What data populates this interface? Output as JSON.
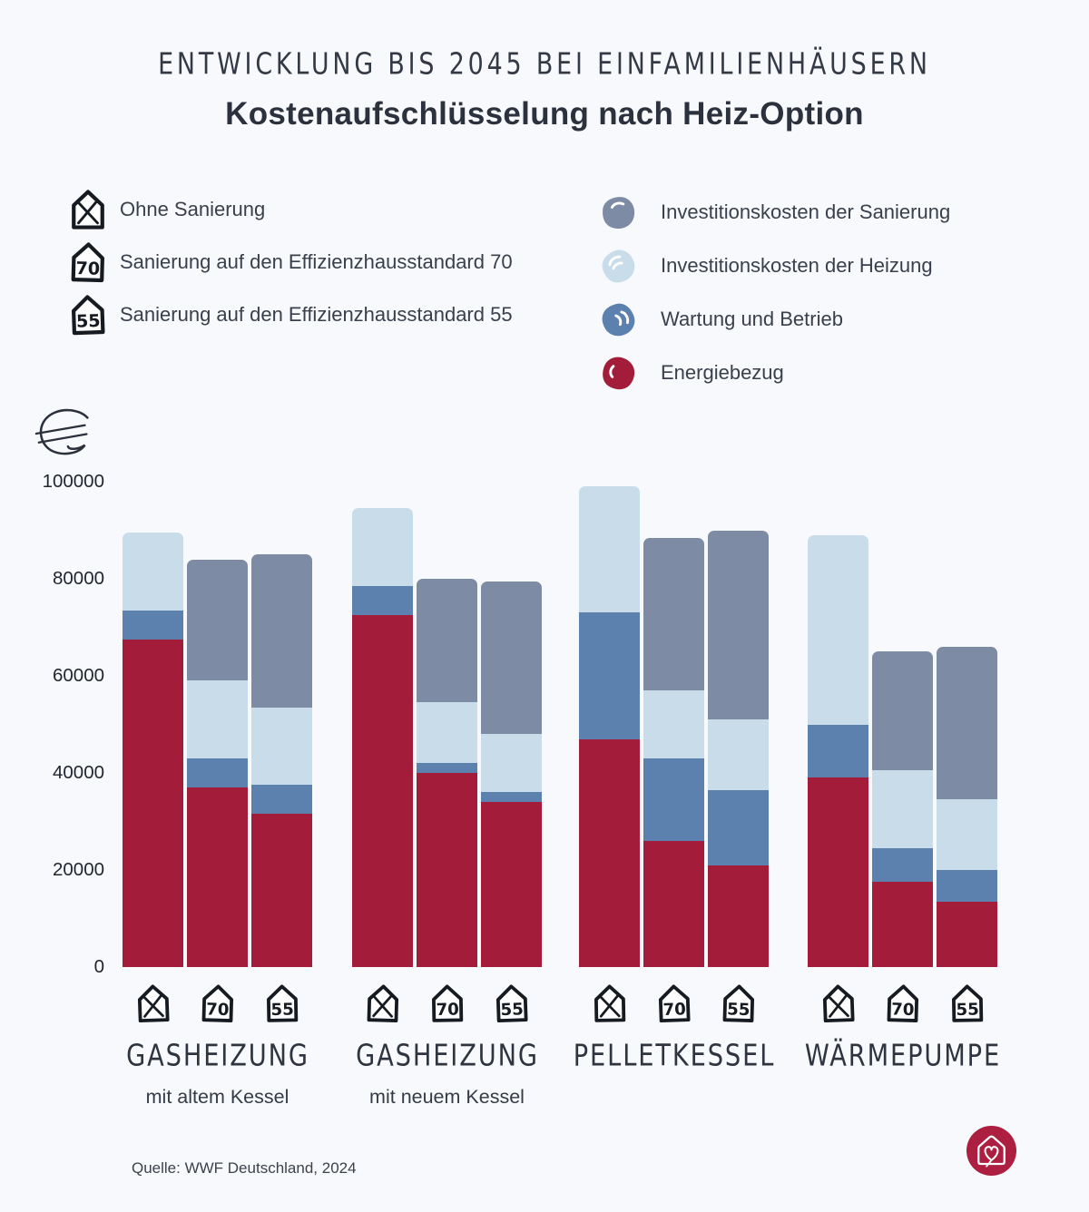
{
  "header": {
    "kicker": "ENTWICKLUNG BIS 2045 BEI EINFAMILIENHÄUSERN",
    "title": "Kostenaufschlüsselung nach Heiz-Option"
  },
  "renovation_legend": {
    "items": [
      {
        "icon": "house-x-icon",
        "badge": "",
        "label": "Ohne Sanierung"
      },
      {
        "icon": "house-70-icon",
        "badge": "70",
        "label": "Sanierung auf den Effizienzhausstandard 70"
      },
      {
        "icon": "house-55-icon",
        "badge": "55",
        "label": "Sanierung auf den Effizienzhausstandard 55"
      }
    ]
  },
  "cost_legend": {
    "items": [
      {
        "key": "sanierung",
        "label": "Investitionskosten der Sanierung",
        "color": "#7d8ba4"
      },
      {
        "key": "heizung",
        "label": "Investitionskosten der Heizung",
        "color": "#c9dcea"
      },
      {
        "key": "wartung",
        "label": "Wartung und Betrieb",
        "color": "#5c81af"
      },
      {
        "key": "energie",
        "label": "Energiebezug",
        "color": "#a31d3b"
      }
    ]
  },
  "axis": {
    "unit": "€",
    "ticks": [
      100000,
      80000,
      60000,
      40000,
      20000,
      0
    ],
    "max": 100000
  },
  "chart_data": {
    "type": "bar",
    "stacked": true,
    "title": "Kostenaufschlüsselung nach Heiz-Option",
    "ylabel": "€",
    "ylim": [
      0,
      100000
    ],
    "grid": false,
    "legend_position": "top",
    "segment_order": [
      "energie",
      "wartung",
      "heizung",
      "sanierung"
    ],
    "variants": [
      "ohne",
      "70",
      "55"
    ],
    "groups": [
      {
        "label": "GASHEIZUNG",
        "sublabel": "mit altem Kessel",
        "bars": [
          {
            "variant": "ohne",
            "values": {
              "energie": 67500,
              "wartung": 6000,
              "heizung": 16000,
              "sanierung": 0
            },
            "total": 89500
          },
          {
            "variant": "70",
            "values": {
              "energie": 37000,
              "wartung": 6000,
              "heizung": 16000,
              "sanierung": 25000
            },
            "total": 84000
          },
          {
            "variant": "55",
            "values": {
              "energie": 31500,
              "wartung": 6000,
              "heizung": 16000,
              "sanierung": 31500
            },
            "total": 85000
          }
        ]
      },
      {
        "label": "GASHEIZUNG",
        "sublabel": "mit neuem Kessel",
        "bars": [
          {
            "variant": "ohne",
            "values": {
              "energie": 72500,
              "wartung": 6000,
              "heizung": 16000,
              "sanierung": 0
            },
            "total": 94500
          },
          {
            "variant": "70",
            "values": {
              "energie": 40000,
              "wartung": 2000,
              "heizung": 12500,
              "sanierung": 25500
            },
            "total": 80000
          },
          {
            "variant": "55",
            "values": {
              "energie": 34000,
              "wartung": 2000,
              "heizung": 12000,
              "sanierung": 31500
            },
            "total": 79500
          }
        ]
      },
      {
        "label": "PELLETKESSEL",
        "sublabel": "",
        "bars": [
          {
            "variant": "ohne",
            "values": {
              "energie": 47000,
              "wartung": 26000,
              "heizung": 26000,
              "sanierung": 0
            },
            "total": 99000
          },
          {
            "variant": "70",
            "values": {
              "energie": 26000,
              "wartung": 17000,
              "heizung": 14000,
              "sanierung": 31500
            },
            "total": 88500
          },
          {
            "variant": "55",
            "values": {
              "energie": 21000,
              "wartung": 15500,
              "heizung": 14500,
              "sanierung": 39000
            },
            "total": 90000
          }
        ]
      },
      {
        "label": "WÄRMEPUMPE",
        "sublabel": "",
        "bars": [
          {
            "variant": "ohne",
            "values": {
              "energie": 39000,
              "wartung": 11000,
              "heizung": 39000,
              "sanierung": 0
            },
            "total": 89000
          },
          {
            "variant": "70",
            "values": {
              "energie": 17500,
              "wartung": 7000,
              "heizung": 16000,
              "sanierung": 24500
            },
            "total": 65000
          },
          {
            "variant": "55",
            "values": {
              "energie": 13500,
              "wartung": 6500,
              "heizung": 14500,
              "sanierung": 31500
            },
            "total": 66000
          }
        ]
      }
    ]
  },
  "footer": {
    "source": "Quelle: WWF Deutschland, 2024"
  },
  "colors": {
    "background": "#f8f9fc",
    "energie": "#a31d3b",
    "wartung": "#5c81af",
    "heizung": "#c9dcea",
    "sanierung": "#7d8ba4",
    "logo": "#ac1f40",
    "icon_stroke": "#161a21"
  }
}
